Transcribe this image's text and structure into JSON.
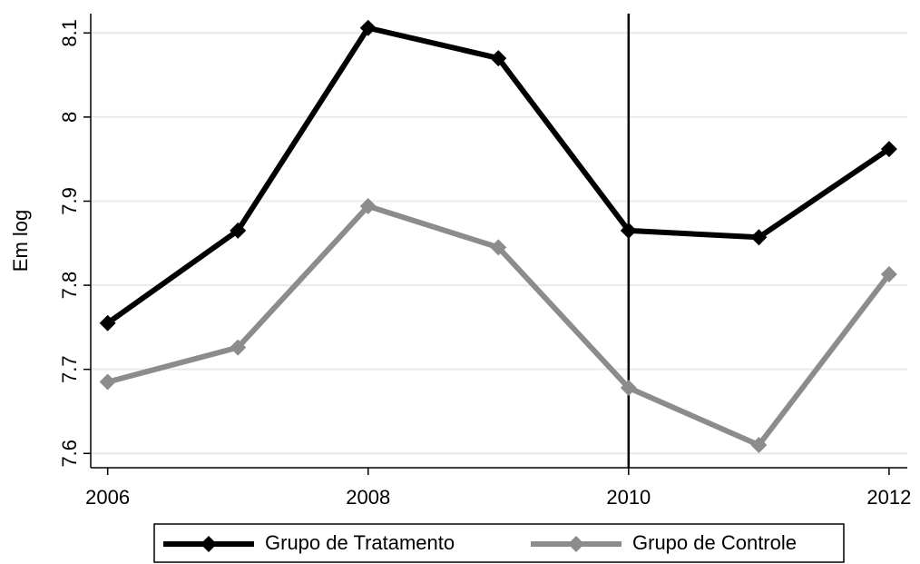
{
  "chart_data": {
    "type": "line",
    "y_label": "Em log",
    "x": [
      2006,
      2007,
      2008,
      2009,
      2010,
      2011,
      2012
    ],
    "series": [
      {
        "name": "Grupo de Tratamento",
        "color": "#000000",
        "values": [
          7.755,
          7.865,
          8.106,
          8.07,
          7.865,
          7.857,
          7.962
        ]
      },
      {
        "name": "Grupo de Controle",
        "color": "#8c8c8c",
        "values": [
          7.685,
          7.726,
          7.894,
          7.845,
          7.678,
          7.61,
          7.813
        ]
      }
    ],
    "xlim": [
      2005.87,
      2012.14
    ],
    "xticks": [
      2006,
      2008,
      2010,
      2012
    ],
    "ylim": [
      7.583,
      8.123
    ],
    "yticks": [
      7.6,
      7.7,
      7.8,
      7.9,
      8,
      8.1
    ],
    "vline": 2010,
    "grid": true,
    "legend": "bottom"
  }
}
